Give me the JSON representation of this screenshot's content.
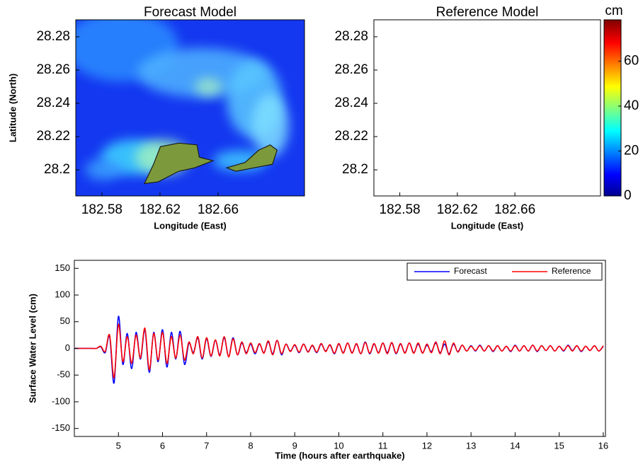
{
  "chart_data": [
    {
      "type": "heatmap",
      "title": "Forecast Model",
      "xlabel": "Longitude (East)",
      "ylabel": "Latitude (North)",
      "xlim": [
        182.562,
        182.7195
      ],
      "ylim": [
        28.1843,
        28.2902
      ],
      "xticks": [
        182.58,
        182.62,
        182.66
      ],
      "yticks": [
        28.2,
        28.22,
        28.24,
        28.26,
        28.28
      ]
    },
    {
      "type": "heatmap",
      "title": "Reference Model",
      "xlabel": "Longitude (East)",
      "xlim": [
        182.562,
        182.7195
      ],
      "ylim": [
        28.1843,
        28.2902
      ],
      "xticks": [
        182.58,
        182.62,
        182.66
      ],
      "yticks": [
        28.2,
        28.22,
        28.24,
        28.26,
        28.28
      ],
      "colorbar": {
        "label": "cm",
        "lim": [
          0,
          78.4
        ],
        "ticks": [
          0,
          20,
          40,
          60
        ]
      }
    },
    {
      "type": "line",
      "xlabel": "Time (hours after earthquake)",
      "ylabel": "Surface Water Level (cm)",
      "xlim": [
        4,
        16.05
      ],
      "ylim": [
        -165,
        165
      ],
      "xticks": [
        5,
        6,
        7,
        8,
        9,
        10,
        11,
        12,
        13,
        14,
        15,
        16
      ],
      "yticks": [
        -150,
        -100,
        -50,
        0,
        50,
        100,
        150
      ],
      "legend": "upper right",
      "x": [
        4,
        4.1,
        4.2,
        4.3,
        4.4,
        4.5,
        4.6,
        4.7,
        4.8,
        4.9,
        5,
        5.1,
        5.2,
        5.3,
        5.4,
        5.5,
        5.6,
        5.7,
        5.8,
        5.9,
        6,
        6.1,
        6.2,
        6.3,
        6.4,
        6.5,
        6.6,
        6.7,
        6.8,
        6.9,
        7,
        7.1,
        7.2,
        7.3,
        7.4,
        7.5,
        7.6,
        7.7,
        7.8,
        7.9,
        8,
        8.1,
        8.2,
        8.3,
        8.4,
        8.5,
        8.6,
        8.7,
        8.8,
        8.9,
        9,
        9.1,
        9.2,
        9.3,
        9.4,
        9.5,
        9.6,
        9.7,
        9.8,
        9.9,
        10,
        10.1,
        10.2,
        10.3,
        10.4,
        10.5,
        10.6,
        10.7,
        10.8,
        10.9,
        11,
        11.1,
        11.2,
        11.3,
        11.4,
        11.5,
        11.6,
        11.7,
        11.8,
        11.9,
        12,
        12.1,
        12.2,
        12.3,
        12.4,
        12.5,
        12.6,
        12.7,
        12.8,
        12.9,
        13,
        13.1,
        13.2,
        13.3,
        13.4,
        13.5,
        13.6,
        13.7,
        13.8,
        13.9,
        14,
        14.1,
        14.2,
        14.3,
        14.4,
        14.5,
        14.6,
        14.7,
        14.8,
        14.9,
        15,
        15.1,
        15.2,
        15.3,
        15.4,
        15.5,
        15.6,
        15.7,
        15.8,
        15.9,
        16
      ],
      "series": [
        {
          "name": "Forecast",
          "color": "#0000ff",
          "values": [
            0,
            0,
            0,
            0,
            0,
            0,
            3,
            -8,
            22,
            -65,
            60,
            -30,
            28,
            -38,
            30,
            -20,
            35,
            -45,
            30,
            -25,
            35,
            -35,
            30,
            -20,
            32,
            -30,
            10,
            -8,
            20,
            -20,
            18,
            -15,
            15,
            -12,
            20,
            -15,
            20,
            -12,
            10,
            -8,
            8,
            -10,
            8,
            -8,
            12,
            -10,
            15,
            -12,
            8,
            -5,
            6,
            -8,
            8,
            -6,
            5,
            -8,
            8,
            -5,
            6,
            -10,
            8,
            -8,
            10,
            -8,
            8,
            -10,
            12,
            -10,
            8,
            -8,
            10,
            -8,
            10,
            -10,
            8,
            -8,
            10,
            -8,
            8,
            -8,
            6,
            -6,
            10,
            -8,
            8,
            -10,
            8,
            -6,
            6,
            -5,
            5,
            -5,
            6,
            -5,
            5,
            -6,
            5,
            -5,
            4,
            -6,
            6,
            -5,
            5,
            -5,
            6,
            -6,
            5,
            -4,
            5,
            -5,
            4,
            -5,
            6,
            -4,
            5,
            -6,
            4,
            -4,
            5,
            -5,
            4
          ]
        },
        {
          "name": "Reference",
          "color": "#ff0000",
          "values": [
            0,
            0,
            0,
            0,
            0,
            0,
            4,
            -6,
            25,
            -55,
            45,
            -25,
            22,
            -28,
            25,
            -18,
            38,
            -40,
            28,
            -22,
            30,
            -28,
            22,
            -18,
            25,
            -22,
            12,
            -10,
            22,
            -18,
            20,
            -14,
            16,
            -14,
            22,
            -16,
            18,
            -12,
            12,
            -10,
            10,
            -8,
            9,
            -9,
            14,
            -12,
            15,
            -10,
            8,
            -6,
            7,
            -7,
            8,
            -7,
            6,
            -7,
            9,
            -6,
            7,
            -9,
            9,
            -9,
            10,
            -9,
            9,
            -10,
            11,
            -9,
            9,
            -9,
            10,
            -10,
            11,
            -9,
            9,
            -9,
            10,
            -9,
            10,
            -9,
            8,
            -8,
            12,
            -10,
            14,
            -12,
            10,
            -7,
            6,
            -5,
            4,
            -4,
            5,
            -5,
            5,
            -5,
            5,
            -5,
            4,
            -5,
            5,
            -5,
            5,
            -5,
            6,
            -5,
            5,
            -4,
            5,
            -5,
            4,
            -4,
            5,
            -5,
            5,
            -5,
            4,
            -4,
            5,
            -5,
            5
          ]
        }
      ]
    }
  ]
}
